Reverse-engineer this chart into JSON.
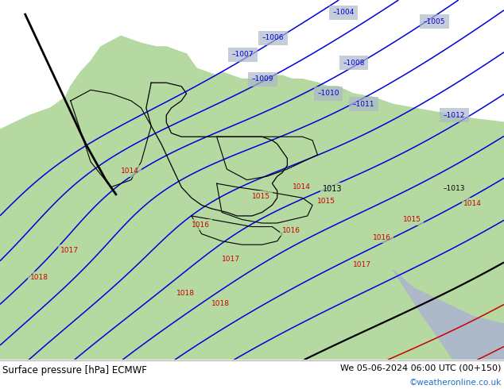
{
  "title_left": "Surface pressure [hPa] ECMWF",
  "title_right": "We 05-06-2024 06:00 UTC (00+150)",
  "credit": "©weatheronline.co.uk",
  "land_color": "#b5d9a0",
  "sea_color": "#adb8c8",
  "border_color": "#606060",
  "blue_isobar_color": "#0000dd",
  "red_isobar_color": "#cc0000",
  "black_isobar_color": "#000000",
  "figsize": [
    6.34,
    4.9
  ],
  "dpi": 100,
  "font_color_main": "#000000",
  "font_color_credit": "#1a6fcc",
  "isobar_lw": 1.1
}
